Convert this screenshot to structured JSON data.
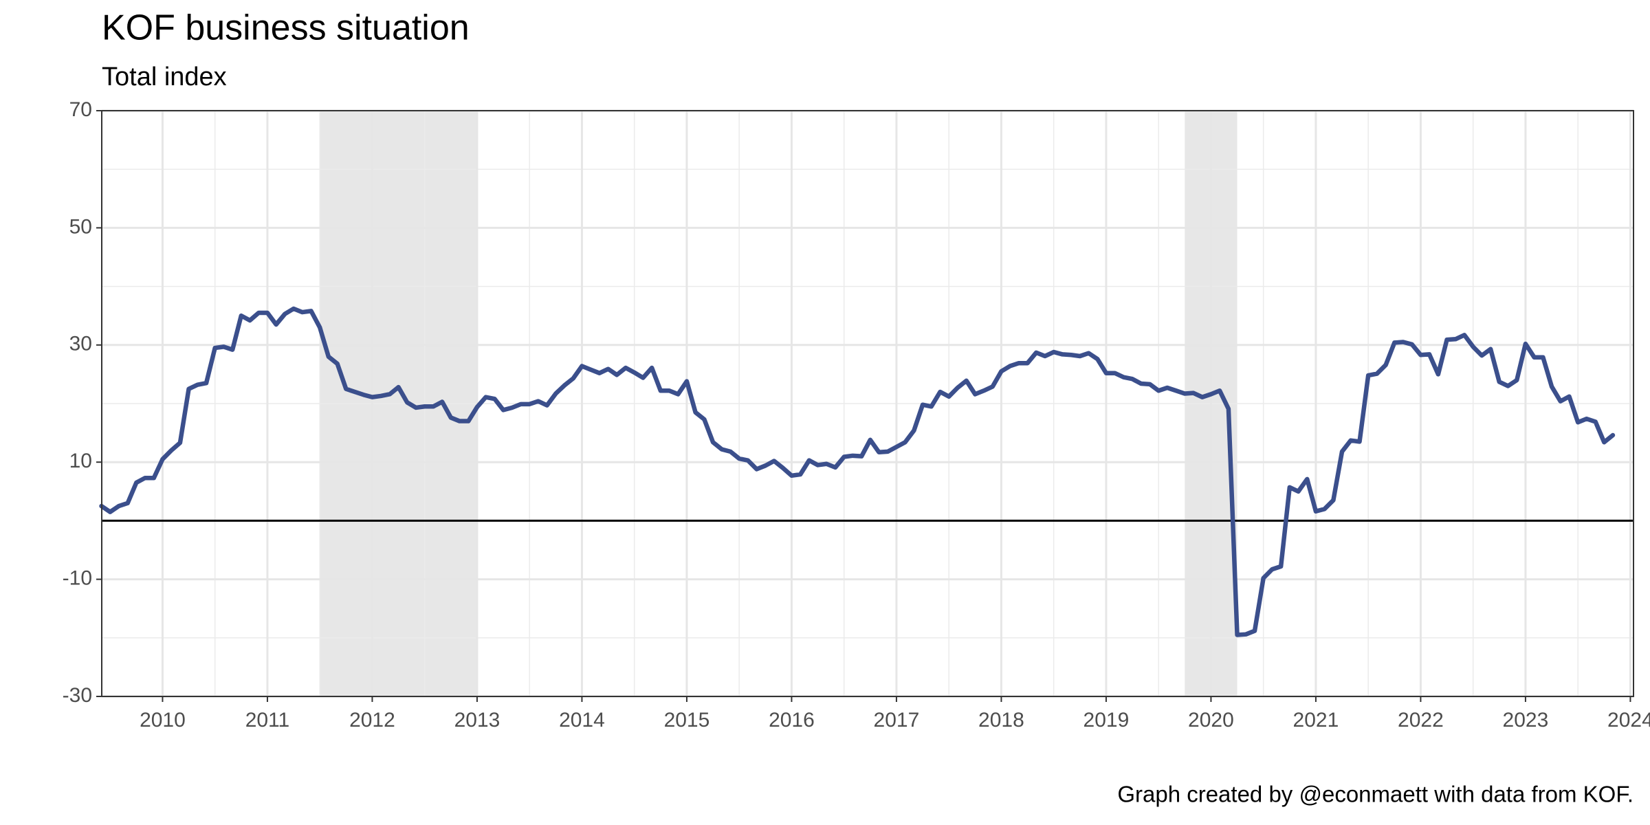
{
  "chart_data": {
    "type": "line",
    "title": "KOF business situation",
    "subtitle": "Total index",
    "caption": "Graph created by @econmaett with data from KOF.",
    "color": "#3b4f8c",
    "shade_color": "#e3e3e3",
    "grid": true,
    "hline": 0,
    "shade": [
      [
        2011.5,
        2013.0
      ],
      [
        2019.75,
        2020.25
      ]
    ],
    "xlim": [
      2009.42,
      2024.03
    ],
    "xticks": [
      2010,
      2011,
      2012,
      2013,
      2014,
      2015,
      2016,
      2017,
      2018,
      2019,
      2020,
      2021,
      2022,
      2023,
      2024
    ],
    "ylim": [
      -30,
      70
    ],
    "yticks": [
      -30,
      -10,
      10,
      30,
      50,
      70
    ],
    "x": [
      2009.417,
      2009.5,
      2009.583,
      2009.667,
      2009.75,
      2009.833,
      2009.917,
      2010.0,
      2010.083,
      2010.167,
      2010.25,
      2010.333,
      2010.417,
      2010.5,
      2010.583,
      2010.667,
      2010.75,
      2010.833,
      2010.917,
      2011.0,
      2011.083,
      2011.167,
      2011.25,
      2011.333,
      2011.417,
      2011.5,
      2011.583,
      2011.667,
      2011.75,
      2011.833,
      2011.917,
      2012.0,
      2012.083,
      2012.167,
      2012.25,
      2012.333,
      2012.417,
      2012.5,
      2012.583,
      2012.667,
      2012.75,
      2012.833,
      2012.917,
      2013.0,
      2013.083,
      2013.167,
      2013.25,
      2013.333,
      2013.417,
      2013.5,
      2013.583,
      2013.667,
      2013.75,
      2013.833,
      2013.917,
      2014.0,
      2014.083,
      2014.167,
      2014.25,
      2014.333,
      2014.417,
      2014.5,
      2014.583,
      2014.667,
      2014.75,
      2014.833,
      2014.917,
      2015.0,
      2015.083,
      2015.167,
      2015.25,
      2015.333,
      2015.417,
      2015.5,
      2015.583,
      2015.667,
      2015.75,
      2015.833,
      2015.917,
      2016.0,
      2016.083,
      2016.167,
      2016.25,
      2016.333,
      2016.417,
      2016.5,
      2016.583,
      2016.667,
      2016.75,
      2016.833,
      2016.917,
      2017.0,
      2017.083,
      2017.167,
      2017.25,
      2017.333,
      2017.417,
      2017.5,
      2017.583,
      2017.667,
      2017.75,
      2017.833,
      2017.917,
      2018.0,
      2018.083,
      2018.167,
      2018.25,
      2018.333,
      2018.417,
      2018.5,
      2018.583,
      2018.667,
      2018.75,
      2018.833,
      2018.917,
      2019.0,
      2019.083,
      2019.167,
      2019.25,
      2019.333,
      2019.417,
      2019.5,
      2019.583,
      2019.667,
      2019.75,
      2019.833,
      2019.917,
      2020.0,
      2020.083,
      2020.167,
      2020.25,
      2020.333,
      2020.417,
      2020.5,
      2020.583,
      2020.667,
      2020.75,
      2020.833,
      2020.917,
      2021.0,
      2021.083,
      2021.167,
      2021.25,
      2021.333,
      2021.417,
      2021.5,
      2021.583,
      2021.667,
      2021.75,
      2021.833,
      2021.917,
      2022.0,
      2022.083,
      2022.167,
      2022.25,
      2022.333,
      2022.417,
      2022.5,
      2022.583,
      2022.667,
      2022.75,
      2022.833,
      2022.917,
      2023.0,
      2023.083,
      2023.167,
      2023.25,
      2023.333,
      2023.417,
      2023.5,
      2023.583,
      2023.667,
      2023.75,
      2023.833
    ],
    "values": [
      2.5,
      1.5,
      2.5,
      3,
      6.5,
      7.3,
      7.3,
      10.5,
      12,
      13.3,
      22.5,
      23.2,
      23.5,
      29.5,
      29.7,
      29.2,
      35,
      34.2,
      35.5,
      35.5,
      33.5,
      35.3,
      36.2,
      35.6,
      35.8,
      33,
      28,
      26.8,
      22.5,
      22,
      21.5,
      21.1,
      21.3,
      21.6,
      22.8,
      20.2,
      19.3,
      19.5,
      19.5,
      20.3,
      17.6,
      17,
      17,
      19.4,
      21.1,
      20.8,
      18.9,
      19.3,
      19.9,
      19.9,
      20.4,
      19.7,
      21.7,
      23.1,
      24.3,
      26.4,
      25.8,
      25.2,
      25.9,
      24.9,
      26.1,
      25.3,
      24.4,
      26.1,
      22.2,
      22.2,
      21.6,
      23.8,
      18.5,
      17.3,
      13.4,
      12.2,
      11.8,
      10.6,
      10.3,
      8.8,
      9.4,
      10.2,
      9,
      7.7,
      7.9,
      10.3,
      9.5,
      9.7,
      9.1,
      10.9,
      11.1,
      11,
      13.8,
      11.7,
      11.8,
      12.6,
      13.4,
      15.4,
      19.8,
      19.5,
      22,
      21.2,
      22.7,
      23.9,
      21.6,
      22.2,
      22.9,
      25.5,
      26.4,
      26.9,
      26.9,
      28.7,
      28.1,
      28.8,
      28.4,
      28.3,
      28.1,
      28.6,
      27.6,
      25.2,
      25.2,
      24.5,
      24.2,
      23.4,
      23.3,
      22.2,
      22.7,
      22.2,
      21.7,
      21.8,
      21.1,
      21.6,
      22.2,
      19.1,
      -19.5,
      -19.4,
      -18.8,
      -9.8,
      -8.3,
      -7.8,
      5.7,
      5,
      7.1,
      1.6,
      2,
      3.5,
      11.8,
      13.7,
      13.5,
      24.8,
      25.1,
      26.6,
      30.4,
      30.5,
      30.1,
      28.3,
      28.4,
      25,
      30.9,
      31,
      31.7,
      29.7,
      28.2,
      29.3,
      23.7,
      23,
      24,
      30.2,
      27.9,
      27.9,
      22.9,
      20.4,
      21.2,
      16.8,
      17.4,
      16.9,
      13.4,
      14.6
    ]
  }
}
